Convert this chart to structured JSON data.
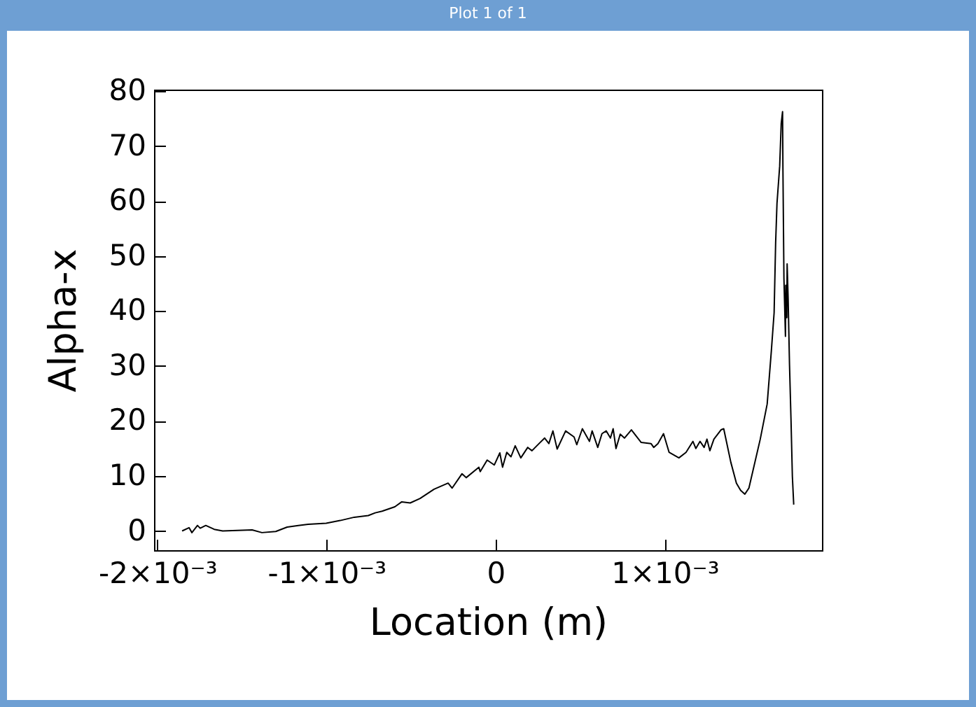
{
  "chart_data": {
    "type": "line",
    "title": "Plot 1 of 1",
    "xlabel": "Location  (m)",
    "ylabel": "Alpha-x",
    "x": [
      -0.001854,
      -0.001813,
      -0.001796,
      -0.001763,
      -0.001747,
      -0.001714,
      -0.001664,
      -0.001614,
      -0.00144,
      -0.001382,
      -0.0013,
      -0.001233,
      -0.001167,
      -0.001109,
      -0.001002,
      -0.000919,
      -0.000836,
      -0.000753,
      -0.000712,
      -0.000671,
      -0.000596,
      -0.000555,
      -0.000505,
      -0.000447,
      -0.000364,
      -0.000281,
      -0.000257,
      -0.000199,
      -0.000174,
      -9.9e-05,
      -9.1e-05,
      -5e-05,
      -8e-06,
      2.5e-05,
      4.1e-05,
      6.6e-05,
      9.1e-05,
      0.000116,
      0.000149,
      0.00019,
      0.000215,
      0.000257,
      0.00029,
      0.000315,
      0.000339,
      0.000364,
      0.000414,
      0.000464,
      0.00048,
      0.000513,
      0.000555,
      0.000571,
      0.000604,
      0.000629,
      0.000654,
      0.000679,
      0.000695,
      0.000712,
      0.000737,
      0.000762,
      0.000803,
      0.000861,
      0.000919,
      0.000935,
      0.00096,
      0.000993,
      0.001026,
      0.001084,
      0.001126,
      0.001167,
      0.001184,
      0.001209,
      0.001233,
      0.00125,
      0.001267,
      0.001291,
      0.001333,
      0.001349,
      0.001391,
      0.001424,
      0.001449,
      0.001474,
      0.001498,
      0.001565,
      0.001606,
      0.001631,
      0.001647,
      0.001656,
      0.001664,
      0.00168,
      0.001689,
      0.001697,
      0.001699,
      0.001705,
      0.001714,
      0.001716,
      0.001722,
      0.001724,
      0.00173,
      0.001738,
      0.001747,
      0.001755,
      0.001763
    ],
    "series": [
      {
        "color": "#000000",
        "values": [
          0,
          0.6,
          -0.3,
          1.0,
          0.5,
          1.0,
          0.3,
          0,
          0.2,
          -0.3,
          -0.1,
          0.7,
          1.0,
          1.2,
          1.4,
          1.9,
          2.5,
          2.8,
          3.3,
          3.6,
          4.4,
          5.3,
          5.1,
          5.9,
          7.6,
          8.7,
          7.8,
          10.4,
          9.7,
          11.6,
          10.8,
          12.9,
          12.0,
          14.2,
          11.6,
          14.3,
          13.5,
          15.5,
          13.3,
          15.2,
          14.6,
          15.9,
          16.9,
          15.9,
          18.2,
          14.9,
          18.2,
          17.1,
          15.7,
          18.6,
          16.3,
          18.2,
          15.2,
          17.7,
          18.2,
          16.9,
          18.6,
          15.0,
          17.6,
          16.9,
          18.4,
          16.1,
          15.9,
          15.2,
          15.9,
          17.7,
          14.3,
          13.3,
          14.3,
          16.3,
          15.0,
          16.3,
          15.2,
          16.7,
          14.6,
          16.7,
          18.4,
          18.6,
          12.5,
          8.7,
          7.4,
          6.7,
          7.8,
          16.7,
          23.1,
          32.9,
          39.7,
          52.4,
          59.6,
          66.4,
          74.1,
          76.3,
          66.4,
          46.0,
          35.4,
          44.7,
          38.8,
          48.6,
          42.2,
          30.3,
          20.1,
          9.9,
          4.8
        ]
      }
    ],
    "xlim": [
      -0.00202,
      0.00193
    ],
    "xticks": [
      {
        "value": -0.002,
        "label": "-2×10⁻³"
      },
      {
        "value": -0.001,
        "label": "-1×10⁻³"
      },
      0,
      {
        "value": 0.001,
        "label": "1×10⁻³"
      }
    ],
    "ylim": [
      -3.5,
      80.3
    ],
    "yticks": [
      0,
      10,
      20,
      30,
      40,
      50,
      60,
      70,
      80
    ],
    "grid": false,
    "legend": false,
    "marker": "none",
    "line_style": "solid"
  }
}
